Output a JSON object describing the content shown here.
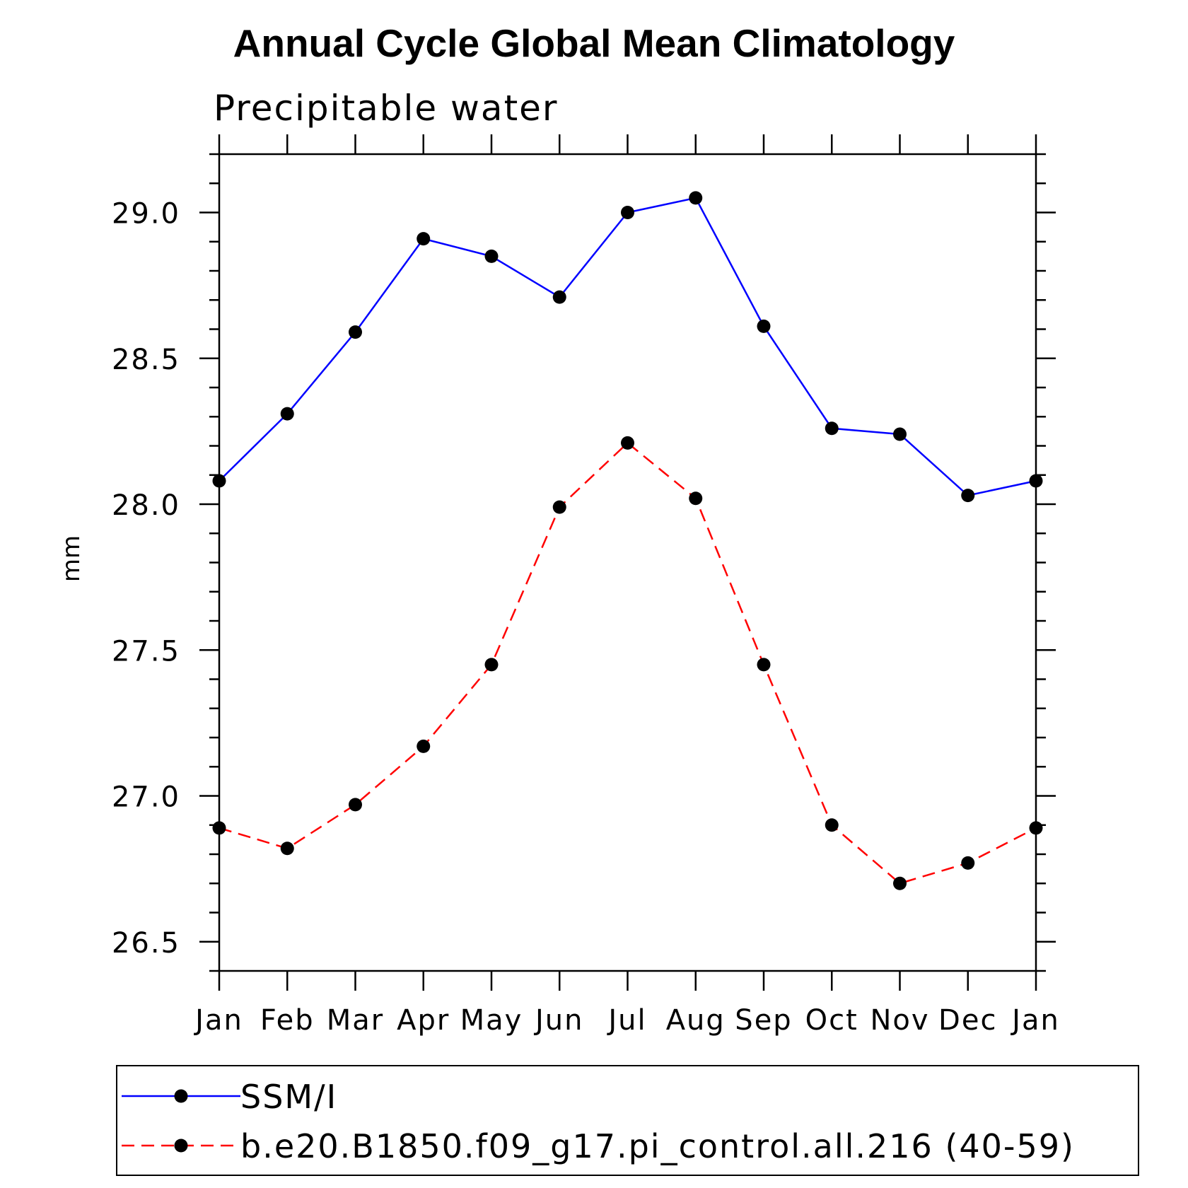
{
  "chart_data": {
    "type": "line",
    "title": "Annual Cycle Global Mean Climatology",
    "subtitle": "Precipitable water",
    "xlabel": "",
    "ylabel": "mm",
    "categories": [
      "Jan",
      "Feb",
      "Mar",
      "Apr",
      "May",
      "Jun",
      "Jul",
      "Aug",
      "Sep",
      "Oct",
      "Nov",
      "Dec",
      "Jan"
    ],
    "ylim": [
      26.4,
      29.2
    ],
    "yticks": [
      "26.5",
      "27.0",
      "27.5",
      "28.0",
      "28.5",
      "29.0"
    ],
    "grid": false,
    "legend_placement": "bottom",
    "series": [
      {
        "name": "SSM/I",
        "color": "#0000ff",
        "line_style": "solid",
        "marker": "filled-circle",
        "values": [
          28.08,
          28.31,
          28.59,
          28.91,
          28.85,
          28.71,
          29.0,
          29.05,
          28.61,
          28.26,
          28.24,
          28.03,
          28.08
        ]
      },
      {
        "name": "b.e20.B1850.f09_g17.pi_control.all.216 (40-59)",
        "color": "#ff0000",
        "line_style": "dashed",
        "marker": "filled-circle",
        "values": [
          26.89,
          26.82,
          26.97,
          27.17,
          27.45,
          27.99,
          28.21,
          28.02,
          27.45,
          26.9,
          26.7,
          26.77,
          26.89
        ]
      }
    ]
  }
}
